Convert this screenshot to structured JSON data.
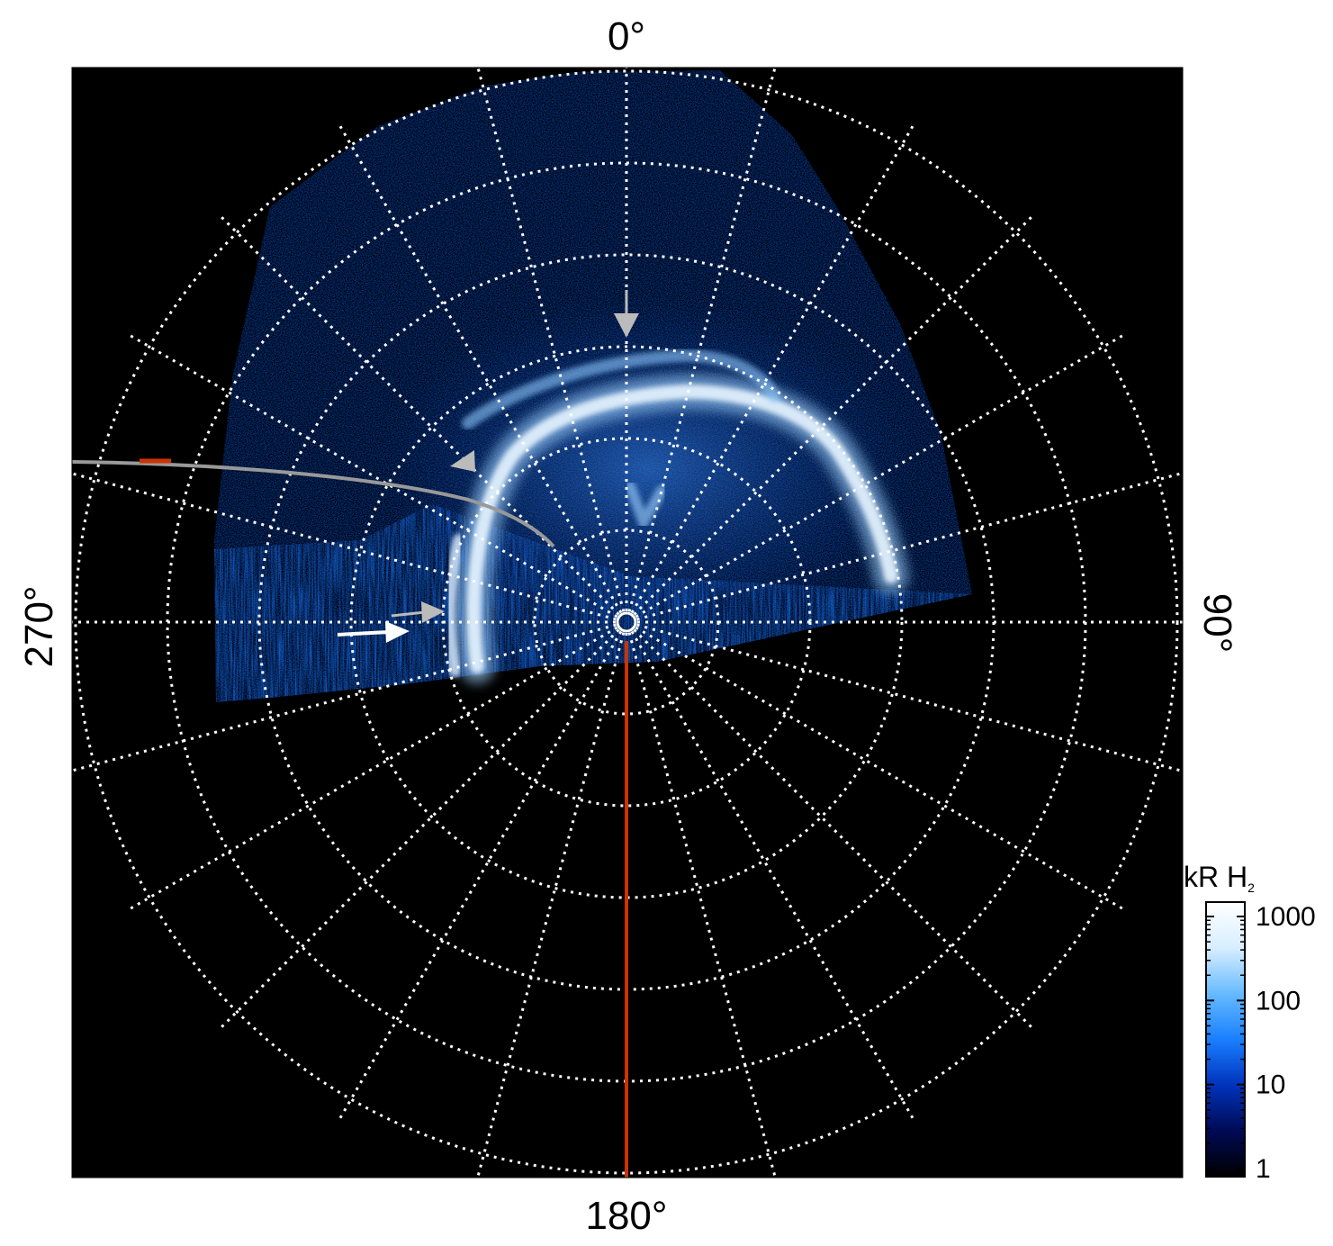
{
  "chart_data": {
    "type": "heatmap",
    "projection": "polar",
    "title": "",
    "orientation_labels": {
      "top": "0°",
      "right": "90°",
      "bottom": "180°",
      "left": "270°"
    },
    "colorbar": {
      "title": "kR H",
      "title_subscript": "2",
      "scale": "log",
      "range": [
        1,
        1000
      ],
      "ticks": [
        "1",
        "10",
        "100",
        "1000"
      ],
      "colormap": [
        "#000000",
        "#000a55",
        "#0033bb",
        "#1a7fff",
        "#66bbff",
        "#d8eeff",
        "#ffffff"
      ]
    },
    "grid": {
      "on": true,
      "style": "dotted white",
      "concentric_rings": 6,
      "radial_spokes_deg": 15
    },
    "background_color": "#000000",
    "annotations": [
      {
        "kind": "arrow",
        "color": "#bbbbbb",
        "description": "grey arrow pointing down toward emission near 0°"
      },
      {
        "kind": "arrow",
        "color": "#bbbbbb",
        "description": "grey arrow pointing toward arc on left"
      },
      {
        "kind": "arrow",
        "color": "#bbbbbb",
        "description": "grey arrow pointing right near 270°"
      },
      {
        "kind": "arrow",
        "color": "#ffffff",
        "description": "white arrow pointing right near 270°"
      },
      {
        "kind": "track",
        "color": "#999999",
        "highlight_color": "#cc3300",
        "description": "grey curved track from left edge with red segment"
      },
      {
        "kind": "line",
        "color": "#cc3300",
        "description": "red line from pole toward 180°"
      }
    ]
  }
}
